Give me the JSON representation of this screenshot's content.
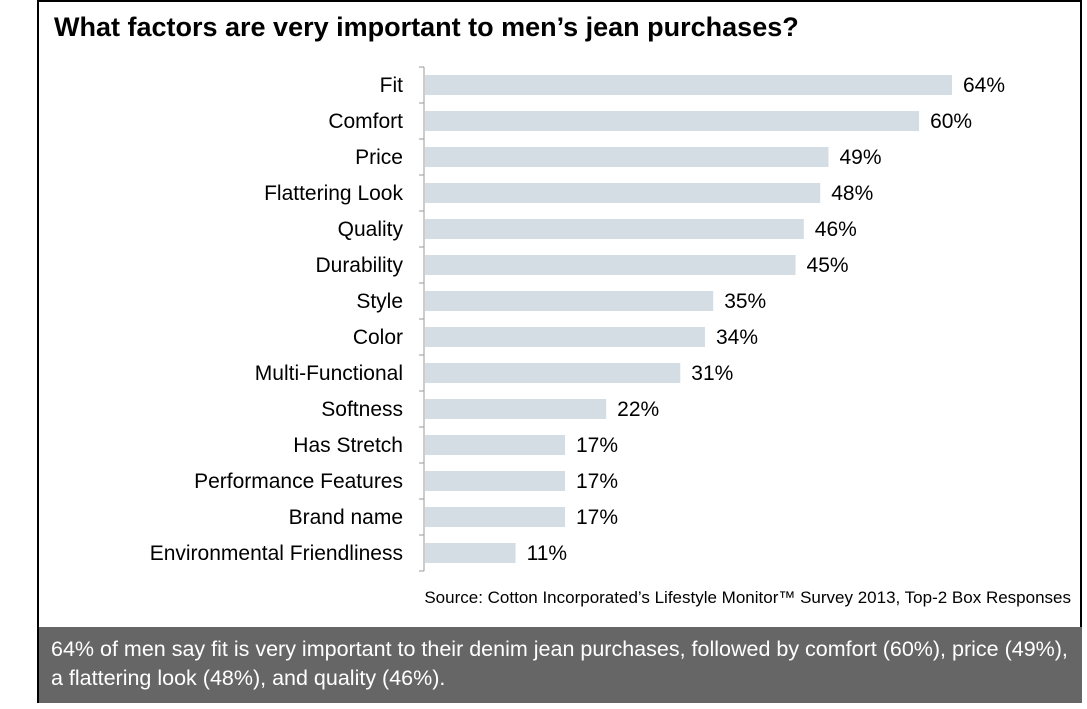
{
  "chart_data": {
    "type": "bar",
    "orientation": "horizontal",
    "title": "What factors are very important to men’s jean purchases?",
    "categories": [
      "Fit",
      "Comfort",
      "Price",
      "Flattering Look",
      "Quality",
      "Durability",
      "Style",
      "Color",
      "Multi-Functional",
      "Softness",
      "Has Stretch",
      "Performance Features",
      "Brand name",
      "Environmental Friendliness"
    ],
    "values": [
      64,
      60,
      49,
      48,
      46,
      45,
      35,
      34,
      31,
      22,
      17,
      17,
      17,
      11
    ],
    "value_labels": [
      "64%",
      "60%",
      "49%",
      "48%",
      "46%",
      "45%",
      "35%",
      "34%",
      "31%",
      "22%",
      "17%",
      "17%",
      "17%",
      "11%"
    ],
    "unit": "%",
    "xlim": [
      0,
      64
    ],
    "grid": false,
    "bar_color": "#d3dde3",
    "source": "Source: Cotton Incorporated’s Lifestyle Monitor™ Survey 2013, Top-2 Box Responses"
  },
  "footer_text": "64% of men say fit is very  important to their denim jean purchases, followed by comfort (60%), price (49%), a flattering look (48%), and quality (46%)."
}
